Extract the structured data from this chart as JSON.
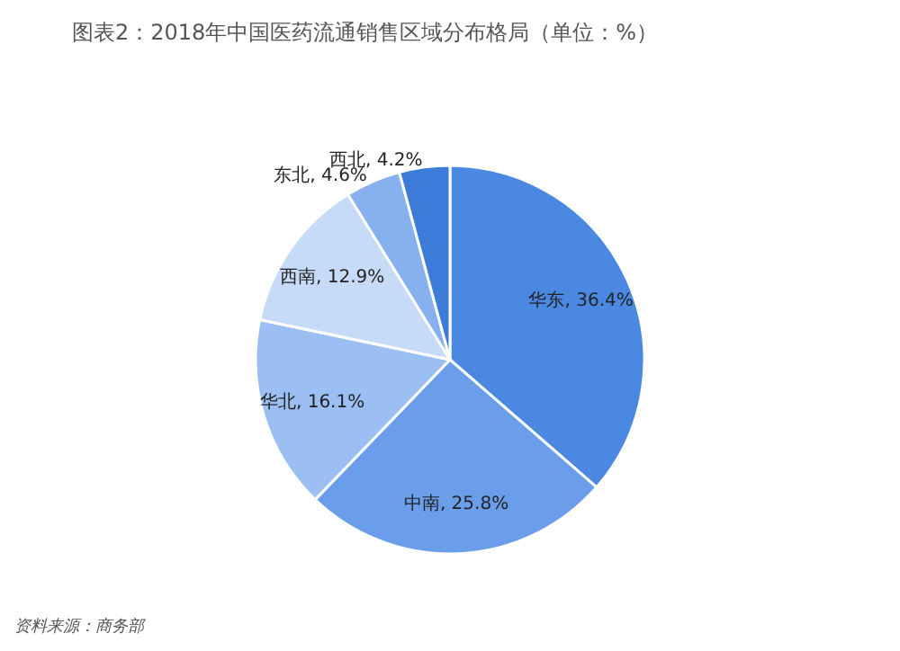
{
  "chart_data": {
    "type": "pie",
    "title": "图表2：2018年中国医药流通销售区域分布格局（单位：%）",
    "categories": [
      "华东",
      "中南",
      "华北",
      "西南",
      "东北",
      "西北"
    ],
    "values": [
      36.4,
      25.8,
      16.1,
      12.9,
      4.6,
      4.2
    ],
    "colors": [
      "#4a88e2",
      "#6a9eea",
      "#9bbff2",
      "#c6dbf7",
      "#86b0ee",
      "#3d7bd8"
    ],
    "value_labels": [
      "36.4%",
      "25.8%",
      "16.1%",
      "12.9%",
      "4.6%",
      "4.2%"
    ],
    "legend": false,
    "annotations": [
      "资料来源：商务部"
    ]
  }
}
